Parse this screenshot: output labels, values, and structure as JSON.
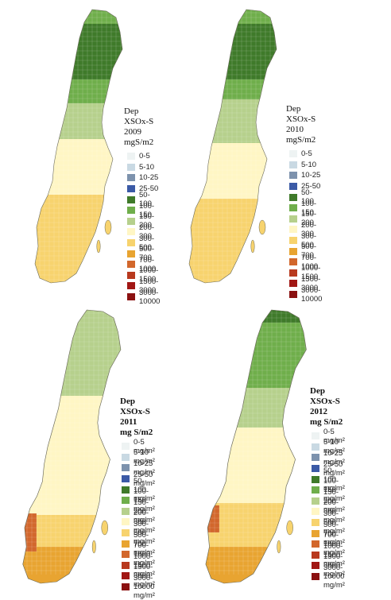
{
  "classes": [
    {
      "color": "#eef3f3"
    },
    {
      "color": "#c9d9e3"
    },
    {
      "color": "#7d92ad"
    },
    {
      "color": "#3b5aa6"
    },
    {
      "color": "#3f7a2a"
    },
    {
      "color": "#6fae4b"
    },
    {
      "color": "#b6d08c"
    },
    {
      "color": "#fff6c4"
    },
    {
      "color": "#f7d36e"
    },
    {
      "color": "#e8a431"
    },
    {
      "color": "#d2672c"
    },
    {
      "color": "#b8391e"
    },
    {
      "color": "#a11714"
    },
    {
      "color": "#8b1111"
    },
    {
      "color": "#4a0b0b"
    }
  ],
  "panels": [
    {
      "year": "2009",
      "title_line1": "Dep XSOx-S 2009",
      "title_line2": "mgS/m2",
      "labels": [
        "0-5",
        "5-10",
        "10-25",
        "25-50",
        "50-100",
        "100-150",
        "150-200",
        "200-300",
        "300-500",
        "500-700",
        "700-1000",
        "1000-1500",
        "1500-3000",
        "3000-10000"
      ],
      "dominant_classes": [
        "50-100",
        "100-150",
        "150-200",
        "200-300",
        "300-500"
      ]
    },
    {
      "year": "2010",
      "title_line1": "Dep XSOx-S 2010",
      "title_line2": "mgS/m2",
      "labels": [
        "0-5",
        "5-10",
        "10-25",
        "25-50",
        "50-100",
        "100-150",
        "150-200",
        "200-300",
        "300-500",
        "500-700",
        "700-1000",
        "1000-1500",
        "1500-3000",
        "3000-10000"
      ],
      "dominant_classes": [
        "50-100",
        "100-150",
        "150-200",
        "200-300",
        "300-500"
      ]
    },
    {
      "year": "2011",
      "title_line1": "Dep XSOx-S 2011",
      "title_line2": "mg S/m2",
      "labels": [
        "0-5 mg/m²",
        "5-10 mg/m²",
        "10-25 mg/m²",
        "25-50 mg/m²",
        "50-100 mg/m²",
        "100-150 mg/m²",
        "150-200 mg/m²",
        "200-300 mg/m²",
        "300-500 mg/m²",
        "500-700 mg/m²",
        "700-1000 mg/m²",
        "1000-1500 mg/m²",
        "1500-3000 mg/m²",
        "3000-10000 mg/m²"
      ],
      "dominant_classes": [
        "100-150",
        "150-200",
        "200-300",
        "300-500",
        "500-700",
        "700-1000"
      ]
    },
    {
      "year": "2012",
      "title_line1": "Dep XSOx-S 2012",
      "title_line2": "mg S/m2",
      "labels": [
        "0-5 mg/m²",
        "5-10 mg/m²",
        "10-25 mg/m²",
        "25-50 mg/m²",
        "50-100 mg/m²",
        "100-150 mg/m²",
        "150-200 mg/m²",
        "200-300 mg/m²",
        "300-500 mg/m²",
        "500-700 mg/m²",
        "700-1000 mg/m²",
        "1000-1500 mg/m²",
        "1500-3000 mg/m²",
        "3000-10000 mg/m²"
      ],
      "dominant_classes": [
        "50-100",
        "100-150",
        "150-200",
        "200-300",
        "300-500",
        "500-700",
        "700-1000"
      ]
    }
  ]
}
